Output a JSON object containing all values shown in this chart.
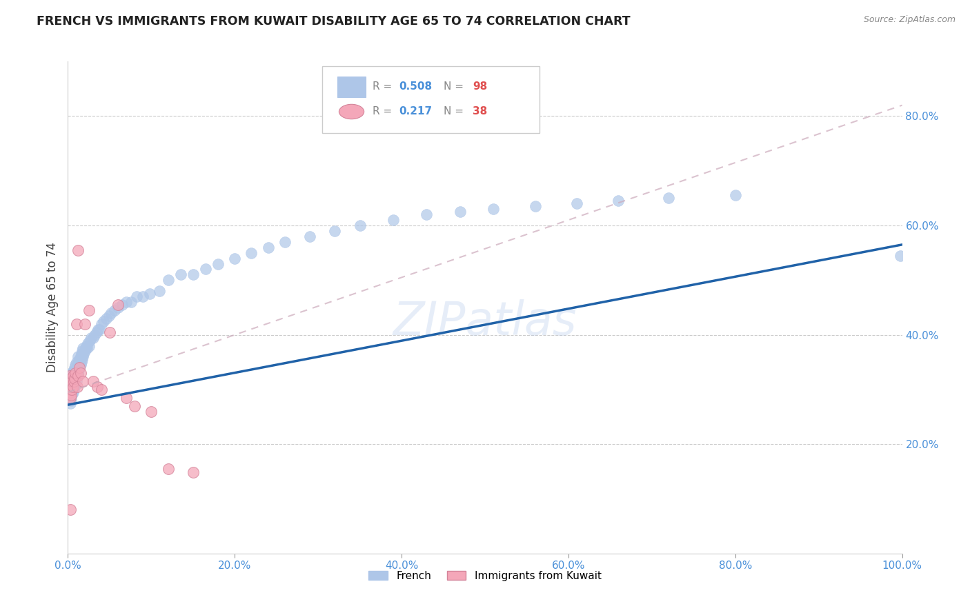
{
  "title": "FRENCH VS IMMIGRANTS FROM KUWAIT DISABILITY AGE 65 TO 74 CORRELATION CHART",
  "source": "Source: ZipAtlas.com",
  "ylabel": "Disability Age 65 to 74",
  "xmin": 0.0,
  "xmax": 1.0,
  "ymin": 0.0,
  "ymax": 0.9,
  "xtick_labels": [
    "0.0%",
    "20.0%",
    "40.0%",
    "60.0%",
    "80.0%",
    "100.0%"
  ],
  "xtick_vals": [
    0.0,
    0.2,
    0.4,
    0.6,
    0.8,
    1.0
  ],
  "ytick_labels": [
    "20.0%",
    "40.0%",
    "60.0%",
    "80.0%"
  ],
  "ytick_vals": [
    0.2,
    0.4,
    0.6,
    0.8
  ],
  "french_R": 0.508,
  "french_N": 98,
  "kuwait_R": 0.217,
  "kuwait_N": 38,
  "french_color": "#aec6e8",
  "french_line_color": "#2062a8",
  "kuwait_color": "#f4a7b9",
  "kuwait_line_color": "#d4849a",
  "watermark": "ZIPatlas",
  "french_scatter_x": [
    0.001,
    0.001,
    0.002,
    0.002,
    0.002,
    0.003,
    0.003,
    0.003,
    0.003,
    0.004,
    0.004,
    0.004,
    0.004,
    0.005,
    0.005,
    0.005,
    0.006,
    0.006,
    0.006,
    0.007,
    0.007,
    0.007,
    0.008,
    0.008,
    0.008,
    0.009,
    0.009,
    0.009,
    0.01,
    0.01,
    0.01,
    0.011,
    0.011,
    0.012,
    0.012,
    0.012,
    0.013,
    0.013,
    0.014,
    0.014,
    0.015,
    0.015,
    0.016,
    0.016,
    0.017,
    0.017,
    0.018,
    0.018,
    0.019,
    0.02,
    0.021,
    0.022,
    0.023,
    0.024,
    0.025,
    0.026,
    0.028,
    0.03,
    0.032,
    0.034,
    0.036,
    0.038,
    0.04,
    0.043,
    0.046,
    0.049,
    0.052,
    0.056,
    0.06,
    0.065,
    0.07,
    0.076,
    0.082,
    0.09,
    0.098,
    0.11,
    0.12,
    0.135,
    0.15,
    0.165,
    0.18,
    0.2,
    0.22,
    0.24,
    0.26,
    0.29,
    0.32,
    0.35,
    0.39,
    0.43,
    0.47,
    0.51,
    0.56,
    0.61,
    0.66,
    0.72,
    0.8,
    0.998
  ],
  "french_scatter_y": [
    0.29,
    0.31,
    0.285,
    0.305,
    0.32,
    0.275,
    0.295,
    0.31,
    0.325,
    0.28,
    0.3,
    0.315,
    0.33,
    0.29,
    0.305,
    0.32,
    0.295,
    0.315,
    0.33,
    0.3,
    0.32,
    0.335,
    0.305,
    0.325,
    0.34,
    0.31,
    0.33,
    0.345,
    0.315,
    0.335,
    0.35,
    0.325,
    0.34,
    0.33,
    0.348,
    0.36,
    0.335,
    0.352,
    0.34,
    0.355,
    0.345,
    0.36,
    0.35,
    0.365,
    0.355,
    0.37,
    0.36,
    0.375,
    0.365,
    0.37,
    0.375,
    0.38,
    0.375,
    0.385,
    0.38,
    0.39,
    0.395,
    0.395,
    0.4,
    0.405,
    0.41,
    0.41,
    0.42,
    0.425,
    0.43,
    0.435,
    0.44,
    0.445,
    0.45,
    0.455,
    0.46,
    0.46,
    0.47,
    0.47,
    0.475,
    0.48,
    0.5,
    0.51,
    0.51,
    0.52,
    0.53,
    0.54,
    0.55,
    0.56,
    0.57,
    0.58,
    0.59,
    0.6,
    0.61,
    0.62,
    0.625,
    0.63,
    0.635,
    0.64,
    0.645,
    0.65,
    0.655,
    0.545
  ],
  "kuwait_scatter_x": [
    0.001,
    0.001,
    0.002,
    0.002,
    0.002,
    0.003,
    0.003,
    0.003,
    0.004,
    0.004,
    0.004,
    0.005,
    0.005,
    0.006,
    0.006,
    0.007,
    0.008,
    0.009,
    0.01,
    0.011,
    0.012,
    0.014,
    0.015,
    0.018,
    0.02,
    0.025,
    0.03,
    0.035,
    0.04,
    0.05,
    0.06,
    0.07,
    0.08,
    0.1,
    0.12,
    0.15,
    0.012,
    0.003
  ],
  "kuwait_scatter_y": [
    0.295,
    0.31,
    0.295,
    0.31,
    0.325,
    0.285,
    0.3,
    0.315,
    0.29,
    0.305,
    0.32,
    0.3,
    0.315,
    0.305,
    0.325,
    0.315,
    0.32,
    0.33,
    0.42,
    0.305,
    0.325,
    0.34,
    0.33,
    0.315,
    0.42,
    0.445,
    0.315,
    0.305,
    0.3,
    0.405,
    0.455,
    0.285,
    0.27,
    0.26,
    0.155,
    0.148,
    0.555,
    0.08
  ],
  "french_line_x0": 0.0,
  "french_line_y0": 0.272,
  "french_line_x1": 1.0,
  "french_line_y1": 0.565,
  "kuwait_line_x0": 0.0,
  "kuwait_line_y0": 0.295,
  "kuwait_line_x1": 1.0,
  "kuwait_line_y1": 0.82
}
